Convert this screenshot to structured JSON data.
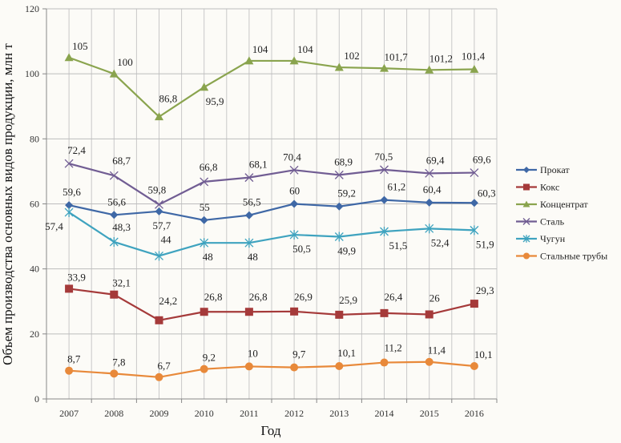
{
  "chart_data": {
    "type": "line",
    "title": "",
    "xlabel": "Год",
    "ylabel": "Объем производства основных видов продукции, млн т",
    "categories": [
      "2007",
      "2008",
      "2009",
      "2010",
      "2011",
      "2012",
      "2013",
      "2014",
      "2015",
      "2016"
    ],
    "ylim": [
      0,
      120
    ],
    "yticks": [
      0,
      20,
      40,
      60,
      80,
      100,
      120
    ],
    "grid": true,
    "legend_position": "right",
    "series": [
      {
        "name": "Прокат",
        "color": "#3f68a6",
        "marker": "diamond",
        "values": [
          59.6,
          56.6,
          57.7,
          55,
          56.5,
          60,
          59.2,
          61.2,
          60.4,
          60.3
        ],
        "labels": [
          "59,6",
          "56,6",
          "57,7",
          "55",
          "56,5",
          "60",
          "59,2",
          "61,2",
          "60,4",
          "60,3"
        ]
      },
      {
        "name": "Кокс",
        "color": "#a53a3a",
        "marker": "square",
        "values": [
          33.9,
          32.1,
          24.2,
          26.8,
          26.8,
          26.9,
          25.9,
          26.4,
          26,
          29.3
        ],
        "labels": [
          "33,9",
          "32,1",
          "24,2",
          "26,8",
          "26,8",
          "26,9",
          "25,9",
          "26,4",
          "26",
          "29,3"
        ]
      },
      {
        "name": "Концентрат",
        "color": "#8aa44e",
        "marker": "triangle",
        "values": [
          105,
          100,
          86.8,
          95.9,
          104,
          104,
          102,
          101.7,
          101.2,
          101.4
        ],
        "labels": [
          "105",
          "100",
          "86,8",
          "95,9",
          "104",
          "104",
          "102",
          "101,7",
          "101,2",
          "101,4"
        ]
      },
      {
        "name": "Сталь",
        "color": "#715d93",
        "marker": "x",
        "values": [
          72.4,
          68.7,
          59.8,
          66.8,
          68.1,
          70.4,
          68.9,
          70.5,
          69.4,
          69.6
        ],
        "labels": [
          "72,4",
          "68,7",
          "59,8",
          "66,8",
          "68,1",
          "70,4",
          "68,9",
          "70,5",
          "69,4",
          "69,6"
        ]
      },
      {
        "name": "Чугун",
        "color": "#3fa3bf",
        "marker": "star",
        "values": [
          57.4,
          48.3,
          44,
          48,
          48,
          50.5,
          49.9,
          51.5,
          52.4,
          51.9
        ],
        "labels": [
          "57,4",
          "48,3",
          "44",
          "48",
          "48",
          "50,5",
          "49,9",
          "51,5",
          "52,4",
          "51,9"
        ]
      },
      {
        "name": "Стальные трубы",
        "color": "#e8893a",
        "marker": "circle",
        "values": [
          8.7,
          7.8,
          6.7,
          9.2,
          10,
          9.7,
          10.1,
          11.2,
          11.4,
          10.1
        ],
        "labels": [
          "8,7",
          "7,8",
          "6,7",
          "9,2",
          "10",
          "9,7",
          "10,1",
          "11,2",
          "11,4",
          "10,1"
        ]
      }
    ]
  }
}
